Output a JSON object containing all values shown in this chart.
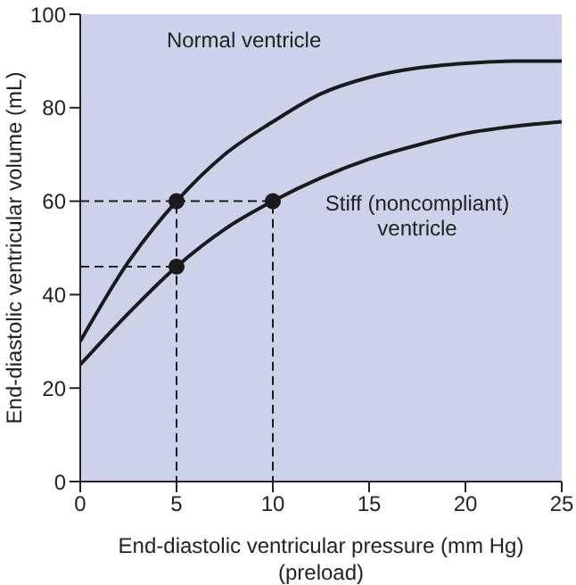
{
  "chart_data": {
    "type": "line",
    "xlabel": "End-diastolic ventricular pressure (mm Hg)\n(preload)",
    "ylabel": "End-diastolic ventricular volume (mL)",
    "xlim": [
      0,
      25
    ],
    "xticks": [
      0,
      5,
      10,
      15,
      20,
      25
    ],
    "ylim": [
      0,
      100
    ],
    "yticks": [
      0,
      20,
      40,
      60,
      80,
      100
    ],
    "grid": false,
    "legend": false,
    "series": [
      {
        "name": "Normal ventricle",
        "color": "#1a1a1a",
        "marker": "none",
        "line_style": "solid",
        "x": [
          0,
          2.5,
          5,
          7.5,
          10,
          12.5,
          15,
          17.5,
          20,
          22.5,
          25
        ],
        "values": [
          30,
          47,
          60,
          70,
          77,
          83,
          86.5,
          88.5,
          89.5,
          90,
          90
        ]
      },
      {
        "name": "Stiff (noncompliant) ventricle",
        "color": "#1a1a1a",
        "marker": "none",
        "line_style": "solid",
        "x": [
          0,
          2.5,
          5,
          7.5,
          10,
          12.5,
          15,
          17.5,
          20,
          22.5,
          25
        ],
        "values": [
          25,
          36,
          46,
          54,
          60,
          65,
          69,
          72,
          74.5,
          76,
          77
        ]
      },
      {
        "color": "#1a1a1a",
        "marker": "none",
        "line_style": "dashed",
        "x": [
          0,
          5,
          5
        ],
        "values": [
          60,
          60,
          0
        ]
      },
      {
        "color": "#1a1a1a",
        "marker": "none",
        "line_style": "dashed",
        "x": [
          0,
          5
        ],
        "values": [
          46,
          46
        ]
      },
      {
        "color": "#1a1a1a",
        "marker": "none",
        "line_style": "dashed",
        "x": [
          5,
          10,
          10
        ],
        "values": [
          60,
          60,
          0
        ]
      },
      {
        "type": "scatter",
        "color": "#1a1a1a",
        "marker": "circle",
        "x": [
          5,
          10,
          5
        ],
        "values": [
          60,
          60,
          46
        ]
      }
    ]
  }
}
